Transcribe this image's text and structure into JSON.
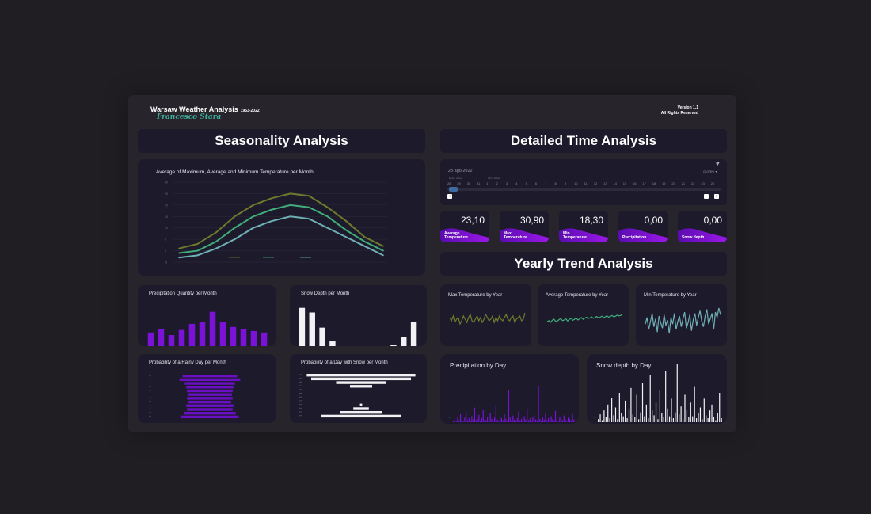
{
  "header": {
    "title": "Warsaw Weather Analysis",
    "years": "1953-2022",
    "author": "Francesco Stara",
    "version": "Version 1.1",
    "rights": "All Rights Reserved"
  },
  "sections": {
    "seasonality": "Seasonality Analysis",
    "detailed": "Detailed Time Analysis",
    "yearly": "Yearly Trend Analysis"
  },
  "colors": {
    "max": "#6f7a2c",
    "avg": "#3fae7a",
    "min": "#6fb0b4",
    "purple": "#7a12d8",
    "white": "#f2f2f4"
  },
  "timeline": {
    "date": "28 ago 2022",
    "granularity": "GIORNI",
    "month_left": "AGO 2022",
    "month_right": "SET 2022",
    "days": [
      "28",
      "29",
      "30",
      "31",
      "1",
      "2",
      "3",
      "4",
      "5",
      "6",
      "7",
      "8",
      "9",
      "10",
      "11",
      "12",
      "13",
      "14",
      "15",
      "16",
      "17",
      "18",
      "19",
      "20",
      "21",
      "22",
      "23",
      "24"
    ]
  },
  "kpis": [
    {
      "value": "23,10",
      "label1": "Average",
      "label2": "Temperature"
    },
    {
      "value": "30,90",
      "label1": "Max",
      "label2": "Temperature"
    },
    {
      "value": "18,30",
      "label1": "Min",
      "label2": "Temperature"
    },
    {
      "value": "0,00",
      "label1": "Precipitation",
      "label2": ""
    },
    {
      "value": "0,00",
      "label1": "Snow depth",
      "label2": ""
    }
  ],
  "chart_titles": {
    "temp": "Average of Maximum, Average and Minimum Temperature per Month",
    "precip_month": "Precipitation Quantity per Month",
    "snow_month": "Snow Depth per Month",
    "rainy_prob": "Probability of a Rainy Day per Month",
    "snow_prob": "Probability of a Day with Snow per Month",
    "max_year": "Max Temperature by Year",
    "avg_year": "Average Temperature by Year",
    "min_year": "Min Temperature by Year",
    "precip_day": "Precipitation by Day",
    "snow_day": "Snow depth by Day"
  },
  "chart_data": [
    {
      "id": "temp",
      "type": "line",
      "title": "Average of Maximum, Average and Minimum Temperature per Month",
      "ylim": [
        -5,
        30
      ],
      "categories": [
        "",
        "",
        "",
        "",
        "",
        "",
        "",
        "",
        "",
        "",
        "",
        ""
      ],
      "series": [
        {
          "color": "#6f7a2c",
          "values": [
            1,
            3,
            8,
            15,
            20,
            23,
            25,
            24,
            19,
            13,
            6,
            2
          ]
        },
        {
          "color": "#3fae7a",
          "values": [
            -1,
            0,
            4,
            10,
            15,
            18,
            20,
            19,
            15,
            9,
            4,
            0
          ]
        },
        {
          "color": "#6fb0b4",
          "values": [
            -3,
            -2,
            1,
            5,
            10,
            13,
            15,
            14,
            10,
            6,
            2,
            -2
          ]
        }
      ]
    },
    {
      "id": "precip_month",
      "type": "bar",
      "title": "Precipitation Quantity per Month",
      "categories": [
        "",
        "",
        "",
        "",
        "",
        "",
        "",
        "",
        "",
        "",
        "",
        ""
      ],
      "values": [
        27,
        34,
        22,
        32,
        44,
        48,
        68,
        48,
        38,
        33,
        30,
        27
      ],
      "ylim": [
        0,
        80
      ]
    },
    {
      "id": "snow_month",
      "type": "bar",
      "title": "Snow Depth per Month",
      "categories": [
        "",
        "",
        "",
        "",
        "",
        "",
        "",
        "",
        "",
        "",
        "",
        ""
      ],
      "values": [
        8.5,
        7.5,
        4.2,
        1.2,
        0,
        0,
        0,
        0,
        0,
        0.4,
        2.2,
        5.4
      ],
      "ylim": [
        0,
        10
      ]
    },
    {
      "id": "rainy_prob",
      "type": "bar",
      "title": "Probability of a Rainy Day per Month",
      "categories": [
        "",
        "",
        "",
        "",
        "",
        "",
        "",
        "",
        "",
        "",
        "",
        ""
      ],
      "values": [
        0.72,
        0.8,
        0.66,
        0.62,
        0.6,
        0.58,
        0.6,
        0.56,
        0.62,
        0.6,
        0.68,
        0.76
      ],
      "xlim": [
        0,
        1
      ]
    },
    {
      "id": "snow_prob",
      "type": "bar",
      "title": "Probability of a Day with Snow per Month",
      "categories": [
        "",
        "",
        "",
        "",
        "",
        "",
        "",
        "",
        "",
        "",
        "",
        ""
      ],
      "values": [
        0.98,
        0.9,
        0.45,
        0.2,
        0,
        0,
        0,
        0,
        0.02,
        0.14,
        0.38,
        0.72
      ],
      "xlim": [
        0,
        1
      ]
    },
    {
      "id": "max_year",
      "type": "line",
      "title": "Max Temperature by Year",
      "color": "#6f7a2c",
      "values": [
        30,
        28,
        31,
        27,
        29,
        30,
        26,
        28,
        31,
        29,
        27,
        30,
        32,
        28,
        27,
        29,
        31,
        28,
        30,
        27,
        29,
        32,
        30,
        28,
        29,
        31,
        27,
        30,
        28,
        31,
        29,
        28,
        30,
        32,
        29,
        28,
        30,
        31,
        27,
        29,
        30,
        31,
        28,
        29,
        33
      ]
    },
    {
      "id": "avg_year",
      "type": "line",
      "title": "Average Temperature by Year",
      "color": "#3fae7a",
      "values": [
        7.8,
        8.1,
        7.6,
        8.2,
        8.5,
        7.9,
        8.0,
        8.4,
        8.7,
        8.1,
        8.3,
        8.6,
        8.0,
        8.4,
        8.8,
        8.2,
        8.5,
        8.9,
        8.3,
        8.6,
        9.0,
        8.5,
        8.8,
        9.1,
        8.7,
        8.9,
        9.2,
        8.8,
        9.0,
        9.3,
        8.9,
        9.1,
        9.4,
        9.0,
        9.2,
        9.5,
        9.1,
        9.3,
        9.6,
        9.2,
        9.4,
        9.7,
        9.5,
        9.6,
        9.9
      ]
    },
    {
      "id": "min_year",
      "type": "line",
      "title": "Min Temperature by Year",
      "color": "#6fb0b4",
      "values": [
        -20,
        -15,
        -24,
        -18,
        -12,
        -22,
        -16,
        -26,
        -14,
        -19,
        -23,
        -13,
        -21,
        -17,
        -27,
        -15,
        -20,
        -12,
        -24,
        -18,
        -14,
        -22,
        -16,
        -11,
        -23,
        -19,
        -13,
        -25,
        -17,
        -12,
        -21,
        -15,
        -10,
        -18,
        -22,
        -14,
        -9,
        -20,
        -16,
        -12,
        -24,
        -11,
        -15,
        -8,
        -13
      ]
    },
    {
      "id": "precip_day",
      "type": "bar",
      "title": "Precipitation by Day",
      "color": "#7a12d8",
      "values": [
        2,
        5,
        1,
        8,
        3,
        12,
        4,
        2,
        7,
        15,
        3,
        6,
        2,
        9,
        4,
        22,
        3,
        5,
        11,
        2,
        6,
        18,
        4,
        3,
        8,
        2,
        14,
        5,
        3,
        7,
        25,
        4,
        2,
        9,
        6,
        3,
        12,
        5,
        2,
        48,
        7,
        3,
        10,
        4,
        2,
        6,
        16,
        3,
        5,
        2,
        9,
        4,
        20,
        3,
        6,
        2,
        8,
        11,
        4,
        3,
        55,
        5,
        2,
        7,
        4,
        13,
        3,
        6,
        2,
        9,
        5,
        3,
        17,
        4,
        2,
        8,
        6,
        3,
        10,
        4,
        2,
        7,
        5,
        3,
        12,
        4
      ]
    },
    {
      "id": "snow_day",
      "type": "bar",
      "title": "Snow depth by Day",
      "color": "#f2f2f4",
      "values": [
        3,
        8,
        2,
        12,
        5,
        18,
        4,
        25,
        7,
        15,
        3,
        30,
        9,
        6,
        22,
        4,
        14,
        35,
        8,
        5,
        28,
        3,
        10,
        40,
        6,
        18,
        4,
        48,
        12,
        7,
        20,
        3,
        33,
        9,
        5,
        52,
        14,
        6,
        24,
        4,
        10,
        60,
        8,
        16,
        3,
        28,
        12,
        5,
        20,
        6,
        36,
        4,
        9,
        15,
        3,
        24,
        7,
        4,
        12,
        18,
        5,
        2,
        9,
        30,
        4
      ]
    }
  ]
}
